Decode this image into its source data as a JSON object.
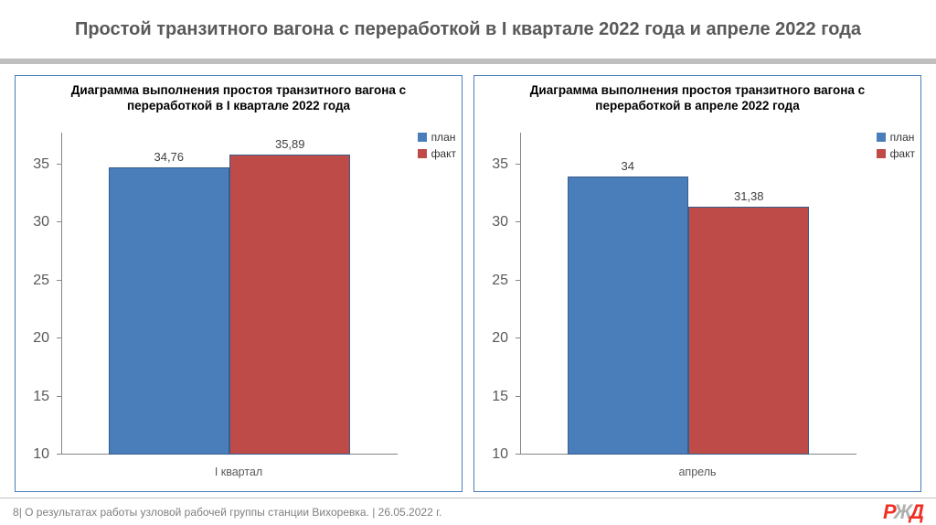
{
  "title": "Простой транзитного вагона с переработкой в I квартале 2022 года и апреле 2022 года",
  "legend": {
    "plan_label": "план",
    "fact_label": "факт",
    "plan_color": "#4a7ebb",
    "fact_color": "#be4b48"
  },
  "axis": {
    "ymin": 10,
    "ymax": 35,
    "yticks": [
      10,
      15,
      20,
      25,
      30,
      35
    ],
    "headroom_frac": 0.1,
    "tick_fontsize": 16,
    "axis_color": "#868686"
  },
  "chart_left": {
    "type": "bar",
    "title": "Диаграмма выполнения простоя транзитного вагона с переработкой в I квартале 2022 года",
    "category": "I квартал",
    "plan_value": 34.76,
    "plan_value_label": "34,76",
    "fact_value": 35.89,
    "fact_value_label": "35,89",
    "bar_colors": {
      "plan": "#4a7ebb",
      "fact": "#be4b48"
    },
    "bar_border": "#385d8a",
    "value_label_fontsize": 13
  },
  "chart_right": {
    "type": "bar",
    "title": "Диаграмма выполнения простоя транзитного вагона с переработкой в апреле 2022 года",
    "category": "апрель",
    "plan_value": 34,
    "plan_value_label": "34",
    "fact_value": 31.38,
    "fact_value_label": "31,38",
    "bar_colors": {
      "plan": "#4a7ebb",
      "fact": "#be4b48"
    },
    "bar_border": "#385d8a",
    "value_label_fontsize": 13
  },
  "footer": {
    "page_number": "8",
    "separator": "| ",
    "text": "О результатах работы узловой рабочей группы станции Вихоревка. | 26.05.2022 г.",
    "logo": {
      "p": "Р",
      "zh": "Ж",
      "d": "Д",
      "color_main": "#ee3124",
      "color_mid": "#b0b0b0"
    }
  },
  "style": {
    "background_color": "#ffffff",
    "panel_border_color": "#4a7ebb",
    "title_color": "#595959",
    "title_fontsize": 20,
    "chart_title_fontsize": 13.5,
    "xlabel_fontsize": 12.5,
    "legend_fontsize": 12
  }
}
